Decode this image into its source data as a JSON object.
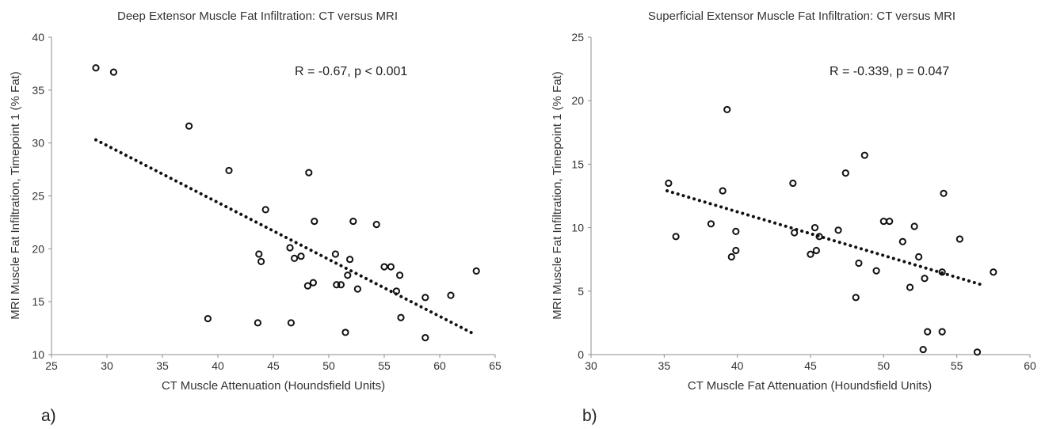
{
  "chart_data": [
    {
      "type": "scatter",
      "title": "Deep Extensor Muscle Fat Infiltration: CT versus MRI",
      "xlabel": "CT Muscle Attenuation (Houndsfield Units)",
      "ylabel": "MRI Muscle Fat Infiltration, Timepoint 1 (% Fat)",
      "xlim": [
        25,
        65
      ],
      "ylim": [
        10,
        40
      ],
      "xticks": [
        25,
        30,
        35,
        40,
        45,
        50,
        55,
        60,
        65
      ],
      "yticks": [
        10,
        15,
        20,
        25,
        30,
        35,
        40
      ],
      "grid": false,
      "annotation": "R = -0.67,  p < 0.001",
      "panel_label": "a)",
      "trendline": {
        "style": "dotted",
        "x": [
          29,
          63
        ],
        "y": [
          30.3,
          12
        ]
      },
      "points": [
        {
          "x": 29.0,
          "y": 37.1
        },
        {
          "x": 30.6,
          "y": 36.7
        },
        {
          "x": 37.4,
          "y": 31.6
        },
        {
          "x": 39.1,
          "y": 13.4
        },
        {
          "x": 41.0,
          "y": 27.4
        },
        {
          "x": 43.7,
          "y": 19.5
        },
        {
          "x": 43.9,
          "y": 18.8
        },
        {
          "x": 43.6,
          "y": 13.0
        },
        {
          "x": 44.3,
          "y": 23.7
        },
        {
          "x": 46.5,
          "y": 20.1
        },
        {
          "x": 46.9,
          "y": 19.1
        },
        {
          "x": 47.5,
          "y": 19.3
        },
        {
          "x": 46.6,
          "y": 13.0
        },
        {
          "x": 48.2,
          "y": 27.2
        },
        {
          "x": 48.6,
          "y": 16.8
        },
        {
          "x": 48.1,
          "y": 16.5
        },
        {
          "x": 48.7,
          "y": 22.6
        },
        {
          "x": 50.6,
          "y": 19.5
        },
        {
          "x": 50.7,
          "y": 16.6
        },
        {
          "x": 51.1,
          "y": 16.6
        },
        {
          "x": 51.7,
          "y": 17.5
        },
        {
          "x": 51.9,
          "y": 19.0
        },
        {
          "x": 52.2,
          "y": 22.6
        },
        {
          "x": 52.6,
          "y": 16.2
        },
        {
          "x": 51.5,
          "y": 12.1
        },
        {
          "x": 54.3,
          "y": 22.3
        },
        {
          "x": 55.0,
          "y": 18.3
        },
        {
          "x": 55.6,
          "y": 18.3
        },
        {
          "x": 56.1,
          "y": 16.0
        },
        {
          "x": 56.4,
          "y": 17.5
        },
        {
          "x": 56.5,
          "y": 13.5
        },
        {
          "x": 58.7,
          "y": 15.4
        },
        {
          "x": 58.7,
          "y": 11.6
        },
        {
          "x": 61.0,
          "y": 15.6
        },
        {
          "x": 63.3,
          "y": 17.9
        }
      ]
    },
    {
      "type": "scatter",
      "title": "Superficial Extensor Muscle Fat Infiltration: CT versus MRI",
      "xlabel": "CT Muscle Fat Attenuation (Houndsfield Units)",
      "ylabel": "MRI Muscle Fat Infiltration, Timepoint 1 (% Fat)",
      "xlim": [
        30,
        60
      ],
      "ylim": [
        0,
        25
      ],
      "xticks": [
        30,
        35,
        40,
        45,
        50,
        55,
        60
      ],
      "yticks": [
        0,
        5,
        10,
        15,
        20,
        25
      ],
      "grid": false,
      "annotation": "R = -0.339,  p = 0.047",
      "panel_label": "b)",
      "trendline": {
        "style": "dotted",
        "x": [
          35.2,
          56.7
        ],
        "y": [
          12.9,
          5.5
        ]
      },
      "points": [
        {
          "x": 35.3,
          "y": 13.5
        },
        {
          "x": 35.8,
          "y": 9.3
        },
        {
          "x": 38.2,
          "y": 10.3
        },
        {
          "x": 39.0,
          "y": 12.9
        },
        {
          "x": 39.3,
          "y": 19.3
        },
        {
          "x": 39.6,
          "y": 7.7
        },
        {
          "x": 39.9,
          "y": 8.2
        },
        {
          "x": 39.9,
          "y": 9.7
        },
        {
          "x": 43.8,
          "y": 13.5
        },
        {
          "x": 43.9,
          "y": 9.6
        },
        {
          "x": 45.0,
          "y": 7.9
        },
        {
          "x": 45.3,
          "y": 10.0
        },
        {
          "x": 45.4,
          "y": 8.2
        },
        {
          "x": 45.6,
          "y": 9.3
        },
        {
          "x": 46.9,
          "y": 9.8
        },
        {
          "x": 47.4,
          "y": 14.3
        },
        {
          "x": 48.1,
          "y": 4.5
        },
        {
          "x": 48.3,
          "y": 7.2
        },
        {
          "x": 48.7,
          "y": 15.7
        },
        {
          "x": 49.5,
          "y": 6.6
        },
        {
          "x": 50.0,
          "y": 10.5
        },
        {
          "x": 50.4,
          "y": 10.5
        },
        {
          "x": 51.3,
          "y": 8.9
        },
        {
          "x": 51.8,
          "y": 5.3
        },
        {
          "x": 52.1,
          "y": 10.1
        },
        {
          "x": 52.4,
          "y": 7.7
        },
        {
          "x": 52.8,
          "y": 6.0
        },
        {
          "x": 52.7,
          "y": 0.4
        },
        {
          "x": 53.0,
          "y": 1.8
        },
        {
          "x": 54.0,
          "y": 6.5
        },
        {
          "x": 54.1,
          "y": 12.7
        },
        {
          "x": 54.0,
          "y": 1.8
        },
        {
          "x": 55.2,
          "y": 9.1
        },
        {
          "x": 56.4,
          "y": 0.2
        },
        {
          "x": 57.5,
          "y": 6.5
        }
      ]
    }
  ]
}
